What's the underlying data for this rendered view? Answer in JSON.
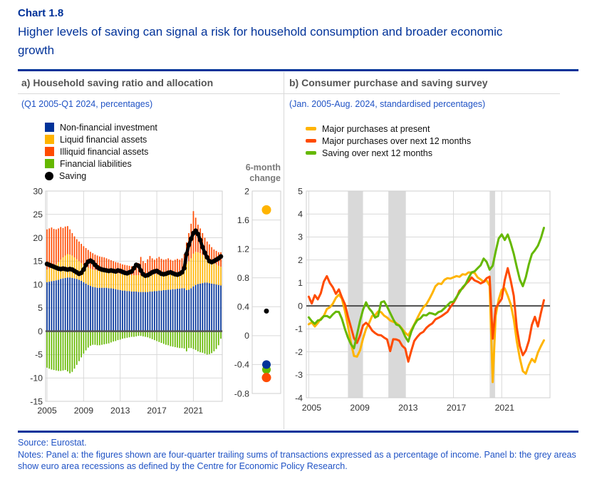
{
  "header": {
    "chart_label": "Chart 1.8",
    "title": "Higher levels of saving can signal a risk for household consumption and broader economic growth"
  },
  "colors": {
    "ecb_blue": "#003299",
    "yellow": "#FFB400",
    "orange": "#FF4B00",
    "green": "#65B800",
    "black": "#000000",
    "grid": "#d9d9d9",
    "band": "#d9d9d9",
    "zero_line": "#4d4d4d",
    "text_blue": "#2053c5",
    "header_gray": "#545454"
  },
  "panel_a": {
    "header": "a) Household saving ratio and allocation",
    "subtitle": "(Q1 2005-Q1 2024, percentages)",
    "legend": [
      {
        "label": "Non-financial investment",
        "color": "#003299",
        "shape": "square"
      },
      {
        "label": "Liquid financial assets",
        "color": "#FFB400",
        "shape": "square"
      },
      {
        "label": "Illiquid financial assets",
        "color": "#FF4B00",
        "shape": "square"
      },
      {
        "label": "Financial liabilities",
        "color": "#65B800",
        "shape": "square"
      },
      {
        "label": "Saving",
        "color": "#000000",
        "shape": "dot"
      }
    ],
    "mini_title": "6-month\nchange"
  },
  "panel_b": {
    "header": "b) Consumer purchase and saving survey",
    "subtitle": "(Jan. 2005-Aug. 2024, standardised percentages)",
    "legend": [
      {
        "label": "Major purchases at present",
        "color": "#FFB400",
        "shape": "line"
      },
      {
        "label": "Major purchases over next 12 months",
        "color": "#FF4B00",
        "shape": "line"
      },
      {
        "label": "Saving over next 12 months",
        "color": "#65B800",
        "shape": "line"
      }
    ]
  },
  "footer": {
    "source": "Source: Eurostat.",
    "notes": "Notes: Panel a: the figures shown are four-quarter trailing sums of transactions expressed as a percentage of income. Panel b: the grey areas show euro area recessions as defined by the Centre for Economic Policy Research."
  },
  "chart_data": [
    {
      "id": "saving_ratio_allocation",
      "type": "bar",
      "stacked": true,
      "x_start": 2005.0,
      "x_step": 0.25,
      "ylim": [
        -15,
        30
      ],
      "ytick_step": 5,
      "yticks": [
        "30",
        "25",
        "20",
        "15",
        "10",
        "5",
        "0",
        "-5",
        "-10",
        "-15"
      ],
      "xticks": [
        2005,
        2009,
        2013,
        2017,
        2021
      ],
      "xtick_labels": [
        "2005",
        "2009",
        "2013",
        "2017",
        "2021"
      ],
      "grid": true,
      "series": [
        {
          "name": "Non-financial investment",
          "color": "#003299",
          "values": [
            10.5,
            10.6,
            10.7,
            10.8,
            10.9,
            11.0,
            11.2,
            11.3,
            11.4,
            11.5,
            11.5,
            11.4,
            11.3,
            11.2,
            11.0,
            10.8,
            10.5,
            10.2,
            9.9,
            9.7,
            9.5,
            9.4,
            9.3,
            9.3,
            9.3,
            9.3,
            9.3,
            9.2,
            9.2,
            9.1,
            9.0,
            8.9,
            8.8,
            8.7,
            8.7,
            8.6,
            8.6,
            8.5,
            8.5,
            8.5,
            8.4,
            8.4,
            8.4,
            8.4,
            8.4,
            8.5,
            8.5,
            8.6,
            8.6,
            8.7,
            8.7,
            8.8,
            8.8,
            8.9,
            8.9,
            9.0,
            9.0,
            9.1,
            9.1,
            9.2,
            9.2,
            8.8,
            8.9,
            9.2,
            9.6,
            9.9,
            10.1,
            10.2,
            10.3,
            10.4,
            10.4,
            10.3,
            10.2,
            10.1,
            10.0,
            9.9,
            9.8
          ]
        },
        {
          "name": "Liquid financial assets",
          "color": "#FFB400",
          "values": [
            2.7,
            2.8,
            2.9,
            3.1,
            3.4,
            3.8,
            4.1,
            4.5,
            4.8,
            5.0,
            4.9,
            4.8,
            4.5,
            4.2,
            4.0,
            3.8,
            3.7,
            3.7,
            3.7,
            3.7,
            3.7,
            3.7,
            3.7,
            3.6,
            3.6,
            3.5,
            3.5,
            3.5,
            3.4,
            3.4,
            3.4,
            3.5,
            3.5,
            3.5,
            3.5,
            3.5,
            3.5,
            3.5,
            3.5,
            3.5,
            3.6,
            3.6,
            3.6,
            3.6,
            3.6,
            3.6,
            3.6,
            3.6,
            3.6,
            3.6,
            3.6,
            3.6,
            3.6,
            3.6,
            3.6,
            3.5,
            3.5,
            3.5,
            3.6,
            3.7,
            4.1,
            5.6,
            6.1,
            6.4,
            7.0,
            7.1,
            6.8,
            6.5,
            6.0,
            5.5,
            5.1,
            4.9,
            4.7,
            4.5,
            4.3,
            4.1,
            4.0
          ]
        },
        {
          "name": "Illiquid financial assets",
          "color": "#FF4B00",
          "values": [
            8.6,
            8.6,
            8.6,
            8.0,
            7.5,
            7.2,
            7.0,
            6.3,
            6.2,
            6.0,
            5.4,
            4.8,
            4.5,
            4.3,
            4.2,
            4.1,
            4.0,
            3.9,
            3.8,
            3.6,
            3.5,
            3.3,
            3.2,
            3.1,
            3.0,
            3.0,
            2.8,
            2.7,
            2.6,
            2.5,
            2.4,
            2.3,
            2.2,
            2.1,
            2.0,
            2.0,
            1.9,
            1.9,
            1.9,
            2.0,
            2.6,
            3.9,
            3.0,
            2.6,
            3.4,
            4.0,
            3.5,
            3.1,
            3.4,
            3.6,
            3.2,
            2.9,
            3.0,
            3.1,
            2.8,
            2.6,
            2.8,
            2.9,
            2.6,
            2.7,
            3.2,
            4.6,
            6.0,
            7.4,
            9.1,
            7.3,
            5.9,
            5.3,
            4.7,
            4.1,
            3.7,
            3.4,
            3.1,
            2.9,
            2.9,
            2.9,
            3.1
          ]
        },
        {
          "name": "Financial liabilities",
          "color": "#65B800",
          "values": [
            -7.8,
            -8.0,
            -8.2,
            -8.3,
            -8.4,
            -8.5,
            -8.5,
            -8.4,
            -8.3,
            -8.6,
            -9.0,
            -8.7,
            -8.0,
            -7.2,
            -6.4,
            -5.6,
            -4.8,
            -4.1,
            -3.5,
            -3.1,
            -2.9,
            -2.9,
            -3.0,
            -3.0,
            -2.9,
            -2.8,
            -2.7,
            -2.6,
            -2.4,
            -2.2,
            -2.1,
            -1.9,
            -1.8,
            -1.6,
            -1.5,
            -1.4,
            -1.3,
            -1.2,
            -1.2,
            -1.1,
            -1.0,
            -1.0,
            -1.1,
            -1.2,
            -1.3,
            -1.5,
            -1.7,
            -1.9,
            -2.1,
            -2.3,
            -2.5,
            -2.7,
            -2.9,
            -3.0,
            -3.2,
            -3.3,
            -3.4,
            -3.5,
            -3.6,
            -3.6,
            -3.7,
            -4.3,
            -3.6,
            -3.6,
            -3.8,
            -4.0,
            -4.3,
            -4.5,
            -4.6,
            -4.8,
            -5.0,
            -4.9,
            -4.7,
            -4.3,
            -3.8,
            -3.0,
            -1.6
          ]
        }
      ],
      "line_series": {
        "name": "Saving",
        "color": "#000000",
        "values": [
          14.4,
          14.2,
          14.0,
          13.8,
          13.6,
          13.4,
          13.3,
          13.4,
          13.3,
          13.2,
          13.3,
          13.2,
          12.9,
          12.6,
          12.3,
          12.5,
          13.2,
          14.2,
          14.9,
          15.1,
          14.8,
          14.2,
          13.7,
          13.4,
          13.2,
          13.1,
          13.0,
          12.9,
          13.0,
          12.9,
          12.8,
          13.0,
          12.9,
          12.7,
          12.5,
          12.4,
          12.6,
          12.8,
          13.5,
          14.2,
          14.0,
          13.0,
          12.2,
          11.9,
          12.0,
          12.3,
          12.6,
          12.8,
          12.9,
          12.6,
          12.3,
          12.2,
          12.3,
          12.5,
          12.6,
          12.4,
          12.2,
          12.1,
          12.3,
          12.6,
          13.5,
          16.5,
          18.5,
          19.8,
          21.0,
          21.5,
          20.8,
          19.5,
          18.0,
          16.8,
          15.8,
          15.0,
          14.8,
          15.0,
          15.3,
          15.6,
          16.0
        ]
      }
    },
    {
      "id": "six_month_change",
      "type": "scatter",
      "title": "6-month change",
      "ylim": [
        -0.8,
        2
      ],
      "yticks": [
        "2",
        "1.6",
        "1.2",
        "0.8",
        "0.4",
        "0",
        "-0.4",
        "-0.8"
      ],
      "points": [
        {
          "name": "Liquid financial assets",
          "value": 1.74,
          "color": "#FFB400",
          "r": 6.5
        },
        {
          "name": "Saving",
          "value": 0.34,
          "color": "#000000",
          "r": 3.5
        },
        {
          "name": "Financial liabilities",
          "value": -0.47,
          "color": "#65B800",
          "r": 6
        },
        {
          "name": "Non-financial investment",
          "value": -0.4,
          "color": "#003299",
          "r": 6
        },
        {
          "name": "Illiquid financial assets",
          "value": -0.58,
          "color": "#FF4B00",
          "r": 6.5
        }
      ]
    },
    {
      "id": "consumer_survey",
      "type": "line",
      "x_start": 2005.0,
      "x_step": 0.25,
      "xlim": [
        2004.8,
        2025.0
      ],
      "ylim": [
        -4,
        5
      ],
      "ytick_step": 1,
      "yticks": [
        "5",
        "4",
        "3",
        "2",
        "1",
        "0",
        "-1",
        "-2",
        "-3",
        "-4"
      ],
      "xticks": [
        2005,
        2009,
        2013,
        2017,
        2021
      ],
      "xtick_labels": [
        "2005",
        "2009",
        "2013",
        "2017",
        "2021"
      ],
      "recession_bands": [
        [
          2008.25,
          2009.5
        ],
        [
          2011.6,
          2013.05
        ],
        [
          2020.0,
          2020.45
        ]
      ],
      "series": [
        {
          "name": "Major purchases at present",
          "color": "#FFB400",
          "values": [
            -0.8,
            -0.7,
            -0.9,
            -0.8,
            -0.6,
            -0.4,
            -0.2,
            -0.1,
            0.1,
            0.3,
            0.5,
            0.3,
            -0.2,
            -0.9,
            -1.6,
            -2.2,
            -2.2,
            -1.9,
            -1.4,
            -1.0,
            -0.7,
            -0.4,
            -0.4,
            -0.3,
            -0.3,
            -0.4,
            -0.5,
            -0.6,
            -0.7,
            -0.8,
            -0.9,
            -1.0,
            -1.2,
            -1.3,
            -1.1,
            -0.8,
            -0.5,
            -0.3,
            -0.1,
            0.1,
            0.3,
            0.6,
            0.9,
            1.0,
            1.0,
            1.1,
            1.2,
            1.2,
            1.2,
            1.3,
            1.3,
            1.4,
            1.4,
            1.5,
            1.5,
            1.4,
            1.3,
            1.2,
            1.1,
            1.1,
            0.9,
            -3.3,
            -0.4,
            0.3,
            0.7,
            0.8,
            0.5,
            0.1,
            -0.6,
            -1.5,
            -2.3,
            -2.8,
            -2.9,
            -2.6,
            -2.3,
            -2.4,
            -2.0,
            -1.7,
            -1.5
          ]
        },
        {
          "name": "Major purchases over next 12 months",
          "color": "#FF4B00",
          "values": [
            0.4,
            0.1,
            0.5,
            0.3,
            0.6,
            1.1,
            1.3,
            1.0,
            0.8,
            0.5,
            0.7,
            0.4,
            0.1,
            -0.4,
            -0.9,
            -1.4,
            -1.6,
            -1.3,
            -0.9,
            -0.7,
            -0.9,
            -1.1,
            -1.2,
            -1.3,
            -1.3,
            -1.4,
            -1.5,
            -2.0,
            -1.5,
            -1.4,
            -1.5,
            -1.7,
            -1.9,
            -2.4,
            -1.9,
            -1.5,
            -1.3,
            -1.2,
            -1.1,
            -1.0,
            -0.8,
            -0.7,
            -0.6,
            -0.5,
            -0.5,
            -0.4,
            -0.2,
            0.0,
            0.1,
            0.3,
            0.6,
            0.8,
            1.0,
            1.1,
            1.2,
            1.1,
            1.0,
            1.0,
            1.1,
            1.2,
            1.3,
            -1.4,
            -0.1,
            0.1,
            0.3,
            1.1,
            1.7,
            1.1,
            0.4,
            -0.9,
            -1.7,
            -2.2,
            -2.0,
            -1.5,
            -0.8,
            -0.5,
            -0.9,
            -0.3,
            0.25
          ]
        },
        {
          "name": "Saving over next 12 months",
          "color": "#65B800",
          "values": [
            -0.5,
            -0.7,
            -0.8,
            -0.6,
            -0.6,
            -0.5,
            -0.4,
            -0.5,
            -0.4,
            -0.2,
            -0.3,
            -0.6,
            -1.0,
            -1.4,
            -1.7,
            -1.8,
            -1.3,
            -0.7,
            -0.2,
            0.1,
            -0.1,
            -0.3,
            -0.5,
            -0.4,
            0.1,
            0.2,
            0.0,
            -0.3,
            -0.6,
            -0.8,
            -0.9,
            -1.0,
            -1.3,
            -1.5,
            -1.1,
            -0.8,
            -0.6,
            -0.5,
            -0.4,
            -0.4,
            -0.3,
            -0.3,
            -0.4,
            -0.3,
            -0.2,
            -0.1,
            0.0,
            0.1,
            0.2,
            0.4,
            0.6,
            0.8,
            1.0,
            1.2,
            1.4,
            1.5,
            1.6,
            1.8,
            2.0,
            1.9,
            1.6,
            1.7,
            2.4,
            2.9,
            3.1,
            2.9,
            3.1,
            2.7,
            2.3,
            1.7,
            1.1,
            0.9,
            1.3,
            1.8,
            2.2,
            2.4,
            2.6,
            3.0,
            3.4
          ]
        }
      ]
    }
  ]
}
